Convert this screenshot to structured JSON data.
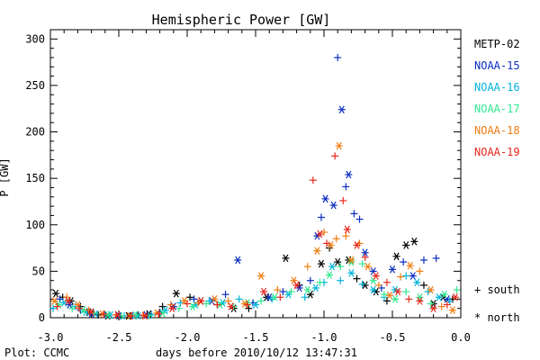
{
  "chart_data": {
    "type": "scatter",
    "title": "Hemispheric Power [GW]",
    "xlabel": "days before 2010/10/12 13:47:31",
    "ylabel": "P [GW]",
    "xlim": [
      -3.0,
      0.0
    ],
    "ylim": [
      0,
      310
    ],
    "x_ticks": [
      -3.0,
      -2.5,
      -2.0,
      -1.5,
      -1.0,
      -0.5,
      0.0
    ],
    "x_tick_labels": [
      "-3.0",
      "-2.5",
      "-2.0",
      "-1.5",
      "-1.0",
      "-0.5",
      "0.0"
    ],
    "y_ticks": [
      0,
      50,
      100,
      150,
      200,
      250,
      300
    ],
    "y_tick_labels": [
      "0",
      "50",
      "100",
      "150",
      "200",
      "250",
      "300"
    ],
    "grid": false,
    "legend_position": "right",
    "marker_legend": [
      {
        "label": "+ south",
        "marker": "plus"
      },
      {
        "label": "* north",
        "marker": "asterisk"
      }
    ],
    "footer": "Plot: CCMC",
    "series": [
      {
        "name": "METP-02",
        "color": "#000000",
        "points": [
          [
            -2.96,
            26,
            "n"
          ],
          [
            -2.91,
            22,
            "s"
          ],
          [
            -2.85,
            18,
            "n"
          ],
          [
            -2.78,
            12,
            "s"
          ],
          [
            -2.72,
            6,
            "n"
          ],
          [
            -2.65,
            3,
            "s"
          ],
          [
            -2.58,
            2,
            "n"
          ],
          [
            -2.5,
            1,
            "s"
          ],
          [
            -2.43,
            2,
            "n"
          ],
          [
            -2.36,
            3,
            "s"
          ],
          [
            -2.28,
            4,
            "n"
          ],
          [
            -2.18,
            12,
            "s"
          ],
          [
            -2.08,
            26,
            "n"
          ],
          [
            -1.98,
            22,
            "s"
          ],
          [
            -1.9,
            18,
            "n"
          ],
          [
            -1.78,
            14,
            "s"
          ],
          [
            -1.66,
            10,
            "n"
          ],
          [
            -1.55,
            10,
            "s"
          ],
          [
            -1.42,
            22,
            "n"
          ],
          [
            -1.28,
            64,
            "n"
          ],
          [
            -1.18,
            35,
            "s"
          ],
          [
            -1.1,
            25,
            "n"
          ],
          [
            -1.02,
            58,
            "n"
          ],
          [
            -0.96,
            75,
            "s"
          ],
          [
            -0.9,
            60,
            "n"
          ],
          [
            -0.82,
            62,
            "n"
          ],
          [
            -0.76,
            42,
            "s"
          ],
          [
            -0.7,
            35,
            "n"
          ],
          [
            -0.62,
            28,
            "n"
          ],
          [
            -0.54,
            18,
            "s"
          ],
          [
            -0.47,
            66,
            "n"
          ],
          [
            -0.4,
            78,
            "n"
          ],
          [
            -0.34,
            82,
            "n"
          ],
          [
            -0.27,
            35,
            "s"
          ],
          [
            -0.2,
            15,
            "n"
          ],
          [
            -0.13,
            22,
            "n"
          ],
          [
            -0.06,
            20,
            "s"
          ]
        ]
      },
      {
        "name": "NOAA-15",
        "color": "#0b2ec0",
        "points": [
          [
            -2.93,
            20,
            "s"
          ],
          [
            -2.86,
            14,
            "n"
          ],
          [
            -2.78,
            8,
            "s"
          ],
          [
            -2.7,
            4,
            "n"
          ],
          [
            -2.6,
            3,
            "s"
          ],
          [
            -2.5,
            2,
            "n"
          ],
          [
            -2.4,
            2,
            "s"
          ],
          [
            -2.3,
            3,
            "n"
          ],
          [
            -2.2,
            6,
            "s"
          ],
          [
            -2.1,
            12,
            "n"
          ],
          [
            -1.95,
            20,
            "s"
          ],
          [
            -1.82,
            18,
            "n"
          ],
          [
            -1.72,
            25,
            "s"
          ],
          [
            -1.63,
            62,
            "n"
          ],
          [
            -1.52,
            16,
            "s"
          ],
          [
            -1.4,
            22,
            "n"
          ],
          [
            -1.3,
            28,
            "s"
          ],
          [
            -1.18,
            32,
            "n"
          ],
          [
            -1.1,
            40,
            "s"
          ],
          [
            -1.05,
            88,
            "n"
          ],
          [
            -1.02,
            108,
            "s"
          ],
          [
            -0.99,
            128,
            "n"
          ],
          [
            -0.93,
            121,
            "n"
          ],
          [
            -0.9,
            280,
            "s"
          ],
          [
            -0.87,
            224,
            "n"
          ],
          [
            -0.84,
            141,
            "s"
          ],
          [
            -0.82,
            154,
            "n"
          ],
          [
            -0.78,
            112,
            "s"
          ],
          [
            -0.74,
            106,
            "s"
          ],
          [
            -0.7,
            70,
            "n"
          ],
          [
            -0.64,
            50,
            "n"
          ],
          [
            -0.58,
            32,
            "s"
          ],
          [
            -0.5,
            52,
            "n"
          ],
          [
            -0.42,
            60,
            "s"
          ],
          [
            -0.35,
            45,
            "n"
          ],
          [
            -0.27,
            62,
            "s"
          ],
          [
            -0.18,
            64,
            "s"
          ],
          [
            -0.1,
            20,
            "n"
          ]
        ]
      },
      {
        "name": "NOAA-16",
        "color": "#00b4dc",
        "points": [
          [
            -2.98,
            10,
            "s"
          ],
          [
            -2.9,
            16,
            "n"
          ],
          [
            -2.82,
            12,
            "s"
          ],
          [
            -2.74,
            6,
            "n"
          ],
          [
            -2.66,
            4,
            "s"
          ],
          [
            -2.56,
            3,
            "n"
          ],
          [
            -2.46,
            2,
            "s"
          ],
          [
            -2.36,
            2,
            "n"
          ],
          [
            -2.26,
            3,
            "s"
          ],
          [
            -2.16,
            8,
            "n"
          ],
          [
            -2.05,
            16,
            "s"
          ],
          [
            -1.94,
            14,
            "n"
          ],
          [
            -1.84,
            18,
            "s"
          ],
          [
            -1.74,
            16,
            "n"
          ],
          [
            -1.62,
            20,
            "s"
          ],
          [
            -1.5,
            14,
            "n"
          ],
          [
            -1.38,
            20,
            "s"
          ],
          [
            -1.26,
            25,
            "n"
          ],
          [
            -1.14,
            22,
            "s"
          ],
          [
            -1.06,
            32,
            "n"
          ],
          [
            -1.0,
            38,
            "s"
          ],
          [
            -0.94,
            55,
            "n"
          ],
          [
            -0.88,
            40,
            "s"
          ],
          [
            -0.8,
            48,
            "n"
          ],
          [
            -0.72,
            36,
            "s"
          ],
          [
            -0.64,
            30,
            "n"
          ],
          [
            -0.56,
            22,
            "s"
          ],
          [
            -0.48,
            30,
            "n"
          ],
          [
            -0.4,
            45,
            "s"
          ],
          [
            -0.32,
            38,
            "n"
          ],
          [
            -0.24,
            28,
            "s"
          ],
          [
            -0.16,
            22,
            "n"
          ],
          [
            -0.08,
            18,
            "s"
          ]
        ]
      },
      {
        "name": "NOAA-17",
        "color": "#30e890",
        "points": [
          [
            -2.94,
            14,
            "n"
          ],
          [
            -2.84,
            10,
            "s"
          ],
          [
            -2.76,
            8,
            "n"
          ],
          [
            -2.68,
            5,
            "s"
          ],
          [
            -2.58,
            3,
            "n"
          ],
          [
            -2.48,
            2,
            "s"
          ],
          [
            -2.38,
            3,
            "n"
          ],
          [
            -2.28,
            2,
            "s"
          ],
          [
            -2.18,
            5,
            "n"
          ],
          [
            -2.06,
            10,
            "s"
          ],
          [
            -1.96,
            12,
            "n"
          ],
          [
            -1.86,
            15,
            "s"
          ],
          [
            -1.76,
            14,
            "n"
          ],
          [
            -1.66,
            12,
            "s"
          ],
          [
            -1.56,
            16,
            "n"
          ],
          [
            -1.46,
            18,
            "s"
          ],
          [
            -1.36,
            22,
            "n"
          ],
          [
            -1.24,
            28,
            "s"
          ],
          [
            -1.12,
            30,
            "n"
          ],
          [
            -1.03,
            38,
            "s"
          ],
          [
            -0.96,
            46,
            "n"
          ],
          [
            -0.88,
            55,
            "s"
          ],
          [
            -0.8,
            60,
            "n"
          ],
          [
            -0.72,
            58,
            "s"
          ],
          [
            -0.64,
            40,
            "n"
          ],
          [
            -0.56,
            25,
            "s"
          ],
          [
            -0.48,
            20,
            "n"
          ],
          [
            -0.4,
            28,
            "s"
          ],
          [
            -0.3,
            22,
            "n"
          ],
          [
            -0.22,
            15,
            "s"
          ],
          [
            -0.12,
            25,
            "n"
          ],
          [
            -0.03,
            30,
            "s"
          ]
        ]
      },
      {
        "name": "NOAA-18",
        "color": "#f07c10",
        "points": [
          [
            -2.97,
            18,
            "n"
          ],
          [
            -2.88,
            22,
            "s"
          ],
          [
            -2.8,
            14,
            "n"
          ],
          [
            -2.72,
            8,
            "s"
          ],
          [
            -2.62,
            4,
            "n"
          ],
          [
            -2.52,
            3,
            "s"
          ],
          [
            -2.42,
            2,
            "n"
          ],
          [
            -2.32,
            3,
            "s"
          ],
          [
            -2.22,
            5,
            "n"
          ],
          [
            -2.12,
            14,
            "s"
          ],
          [
            -2.02,
            18,
            "n"
          ],
          [
            -1.92,
            16,
            "s"
          ],
          [
            -1.8,
            20,
            "n"
          ],
          [
            -1.7,
            18,
            "s"
          ],
          [
            -1.58,
            15,
            "n"
          ],
          [
            -1.46,
            45,
            "n"
          ],
          [
            -1.34,
            30,
            "s"
          ],
          [
            -1.22,
            40,
            "n"
          ],
          [
            -1.12,
            55,
            "s"
          ],
          [
            -1.05,
            72,
            "n"
          ],
          [
            -1.0,
            92,
            "s"
          ],
          [
            -0.95,
            78,
            "n"
          ],
          [
            -0.91,
            85,
            "s"
          ],
          [
            -0.89,
            185,
            "n"
          ],
          [
            -0.84,
            88,
            "s"
          ],
          [
            -0.8,
            62,
            "n"
          ],
          [
            -0.74,
            80,
            "s"
          ],
          [
            -0.68,
            55,
            "n"
          ],
          [
            -0.6,
            35,
            "s"
          ],
          [
            -0.52,
            24,
            "n"
          ],
          [
            -0.44,
            44,
            "s"
          ],
          [
            -0.37,
            56,
            "n"
          ],
          [
            -0.3,
            50,
            "s"
          ],
          [
            -0.22,
            30,
            "n"
          ],
          [
            -0.14,
            12,
            "s"
          ],
          [
            -0.06,
            8,
            "n"
          ]
        ]
      },
      {
        "name": "NOAA-19",
        "color": "#e8281c",
        "points": [
          [
            -2.95,
            12,
            "s"
          ],
          [
            -2.87,
            18,
            "n"
          ],
          [
            -2.79,
            10,
            "s"
          ],
          [
            -2.7,
            6,
            "n"
          ],
          [
            -2.61,
            4,
            "s"
          ],
          [
            -2.51,
            3,
            "n"
          ],
          [
            -2.41,
            2,
            "s"
          ],
          [
            -2.31,
            2,
            "n"
          ],
          [
            -2.21,
            4,
            "s"
          ],
          [
            -2.11,
            10,
            "n"
          ],
          [
            -2.0,
            15,
            "s"
          ],
          [
            -1.9,
            18,
            "n"
          ],
          [
            -1.78,
            14,
            "s"
          ],
          [
            -1.68,
            12,
            "n"
          ],
          [
            -1.56,
            14,
            "s"
          ],
          [
            -1.44,
            28,
            "n"
          ],
          [
            -1.32,
            22,
            "s"
          ],
          [
            -1.2,
            35,
            "n"
          ],
          [
            -1.08,
            148,
            "s"
          ],
          [
            -1.03,
            90,
            "n"
          ],
          [
            -0.98,
            80,
            "s"
          ],
          [
            -0.92,
            174,
            "s"
          ],
          [
            -0.86,
            126,
            "s"
          ],
          [
            -0.83,
            95,
            "n"
          ],
          [
            -0.76,
            78,
            "n"
          ],
          [
            -0.7,
            65,
            "s"
          ],
          [
            -0.62,
            45,
            "n"
          ],
          [
            -0.54,
            38,
            "s"
          ],
          [
            -0.46,
            28,
            "n"
          ],
          [
            -0.38,
            20,
            "s"
          ],
          [
            -0.3,
            18,
            "n"
          ],
          [
            -0.2,
            10,
            "n"
          ],
          [
            -0.1,
            14,
            "s"
          ],
          [
            -0.04,
            22,
            "n"
          ]
        ]
      }
    ]
  }
}
